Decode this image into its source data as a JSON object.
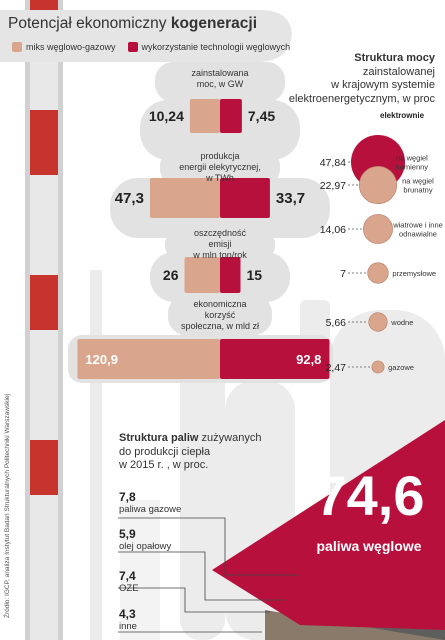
{
  "header": {
    "title_normal": "Potencjał ekonomiczny ",
    "title_bold": "kogeneracji",
    "legend": [
      {
        "label": "miks węglowo-gazowy",
        "color": "#d9a68d"
      },
      {
        "label": "wykorzystanie technologii węglowych",
        "color": "#b8103c"
      }
    ]
  },
  "metrics": [
    {
      "label": "zainstalowana moc, w GW",
      "left": "10,24",
      "right": "7,45"
    },
    {
      "label": "produkcja energii elekyrycznej, w TWh",
      "left": "47,3",
      "right": "33,7"
    },
    {
      "label": "oszczędność emisji w mln ton/rok",
      "left": "26",
      "right": "15"
    },
    {
      "label": "ekonomiczna korzyść społeczna, w mld zł",
      "left": "120,9",
      "right": "92,8"
    }
  ],
  "metric_labels": {
    "m0": [
      "zainstalowana",
      "moc, w GW"
    ],
    "m1": [
      "produkcja",
      "energii elekyrycznej,",
      "w TWh"
    ],
    "m2": [
      "oszczędność",
      "emisji",
      "w mln ton/rok"
    ],
    "m3": [
      "ekonomiczna",
      "korzyść",
      "społeczna, w mld zł"
    ]
  },
  "mix": {
    "title_bold": "Struktura mocy",
    "title_rest": [
      "zainstalowanej",
      "w krajowym systemie",
      "elektroenergetycznym, w proc"
    ],
    "group_label": "elektrownie",
    "items": [
      {
        "value": "47,84",
        "label": [
          "na węgiel",
          "kamienny"
        ]
      },
      {
        "value": "22,97",
        "label": [
          "na węgiel",
          "brunatny"
        ]
      },
      {
        "value": "14,06",
        "label": [
          "wiatrowe i inne",
          "odnawialne"
        ]
      },
      {
        "value": "7",
        "label": [
          "przemysłowe"
        ]
      },
      {
        "value": "5,66",
        "label": [
          "wodne"
        ]
      },
      {
        "value": "2,47",
        "label": [
          "gazowe"
        ]
      }
    ]
  },
  "fuels": {
    "title_bold": "Struktura paliw",
    "title_rest": [
      " zużywanych",
      "do produkcji ciepła",
      "w 2015 r. , w proc."
    ],
    "items": [
      {
        "value": "7,8",
        "name": "paliwa gazowe"
      },
      {
        "value": "5,9",
        "name": "olej opałowy"
      },
      {
        "value": "7,4",
        "name": "OZE"
      },
      {
        "value": "4,3",
        "name": "inne"
      }
    ],
    "big_value": "74,6",
    "big_label": "paliwa węglowe"
  },
  "source": "Źródło: IGCP, analiza Instytut Badań Strukturalnych Politechniki Warszawskiej",
  "chart_data": [
    {
      "type": "bar",
      "title": "Potencjał ekonomiczny kogeneracji",
      "categories": [
        "zainstalowana moc, w GW",
        "produkcja energii elekyrycznej, w TWh",
        "oszczędność emisji w mln ton/rok",
        "ekonomiczna korzyść społeczna, w mld zł"
      ],
      "series": [
        {
          "name": "miks węglowo-gazowy",
          "values": [
            10.24,
            47.3,
            26,
            120.9
          ],
          "color": "#d9a68d"
        },
        {
          "name": "wykorzystanie technologii węglowych",
          "values": [
            7.45,
            33.7,
            15,
            92.8
          ],
          "color": "#b8103c"
        }
      ]
    },
    {
      "type": "scatter",
      "title": "Struktura mocy zainstalowanej w krajowym systemie elektroenergetycznym, w proc",
      "categories": [
        "na węgiel kamienny",
        "na węgiel brunatny",
        "wiatrowe i inne odnawialne",
        "przemysłowe",
        "wodne",
        "gazowe"
      ],
      "values": [
        47.84,
        22.97,
        14.06,
        7,
        5.66,
        2.47
      ],
      "colors": [
        "#b8103c",
        "#d9a68d",
        "#d9a68d",
        "#d9a68d",
        "#d9a68d",
        "#d9a68d"
      ]
    },
    {
      "type": "bar",
      "title": "Struktura paliw zużywanych do produkcji ciepła w 2015 r. , w proc.",
      "categories": [
        "paliwa węglowe",
        "paliwa gazowe",
        "olej opałowy",
        "OZE",
        "inne"
      ],
      "values": [
        74.6,
        7.8,
        5.9,
        7.4,
        4.3
      ]
    }
  ]
}
